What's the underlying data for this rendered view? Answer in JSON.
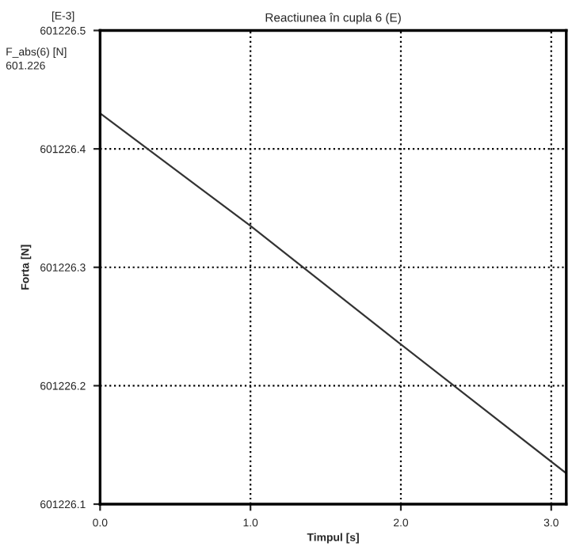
{
  "chart_data": {
    "type": "line",
    "title": "Reactiunea în cupla 6 (E)",
    "xlabel": "Timpul [s]",
    "ylabel": "Forta [N]",
    "annotations": [
      "[E-3]",
      "F_abs(6) [N]",
      "601.226"
    ],
    "x": [
      0.0,
      1.0,
      2.0,
      3.1
    ],
    "series": [
      {
        "color": "#333333",
        "values": [
          601226.43,
          601226.335,
          601226.235,
          601226.126
        ]
      }
    ],
    "xlim": [
      0.0,
      3.1
    ],
    "ylim": [
      601226.1,
      601226.5
    ],
    "xticks": [
      {
        "value": 0,
        "label": "0.0"
      },
      {
        "value": 1,
        "label": "1.0"
      },
      {
        "value": 2,
        "label": "2.0"
      },
      {
        "value": 3,
        "label": "3.0"
      }
    ],
    "yticks": [
      601226.1,
      601226.2,
      601226.3,
      601226.4,
      601226.5
    ],
    "grid": true,
    "line_style": "solid",
    "marker": "none",
    "legend": false
  }
}
